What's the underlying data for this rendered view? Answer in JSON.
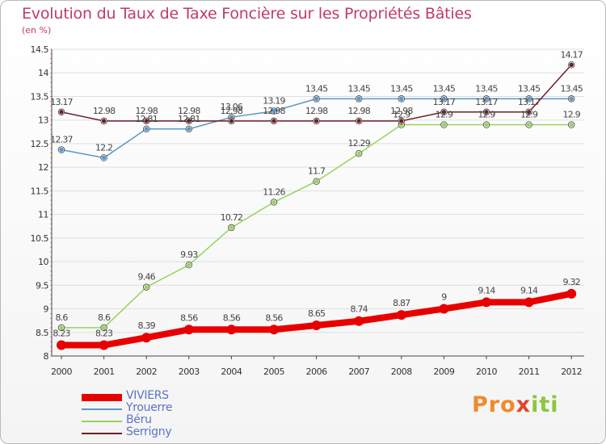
{
  "title": "Evolution du Taux de Taxe Foncière sur les Propriétés Bâties",
  "unit_label": "(en %)",
  "logo": {
    "parts": [
      "Pro",
      "x",
      "iti"
    ]
  },
  "chart_data": {
    "type": "line",
    "title": "Evolution du Taux de Taxe Foncière sur les Propriétés Bâties",
    "ylabel": "(en %)",
    "x": [
      "2000",
      "2001",
      "2002",
      "2003",
      "2004",
      "2005",
      "2006",
      "2007",
      "2008",
      "2009",
      "2010",
      "2011",
      "2012"
    ],
    "ylim": [
      8,
      14.5
    ],
    "yticks": [
      "8",
      "8.5",
      "9",
      "9.5",
      "10",
      "10.5",
      "11",
      "11.5",
      "12",
      "12.5",
      "13",
      "13.5",
      "14",
      "14.5"
    ],
    "grid": "horizontal",
    "legend_position": "bottom-left",
    "series": [
      {
        "name": "VIVIERS",
        "color": "#e80000",
        "width": 8,
        "marker": 6,
        "values": [
          8.23,
          8.23,
          8.39,
          8.56,
          8.56,
          8.56,
          8.65,
          8.74,
          8.87,
          9,
          9.14,
          9.14,
          9.32
        ],
        "labels": [
          "8.23",
          "8.23",
          "8.39",
          "8.56",
          "8.56",
          "8.56",
          "8.65",
          "8.74",
          "8.87",
          "9",
          "9.14",
          "9.14",
          "9.32"
        ]
      },
      {
        "name": "Yrouerre",
        "color": "#5a96c8",
        "width": 1.5,
        "marker": 3,
        "values": [
          12.37,
          12.2,
          12.81,
          12.81,
          13.06,
          13.19,
          13.45,
          13.45,
          13.45,
          13.45,
          13.45,
          13.45,
          13.45
        ],
        "labels": [
          "12.37",
          "12.2",
          "12.81",
          "12.81",
          "13.06",
          "13.19",
          "13.45",
          "13.45",
          "13.45",
          "13.45",
          "13.45",
          "13.45",
          "13.45"
        ]
      },
      {
        "name": "Béru",
        "color": "#98d35a",
        "width": 1.5,
        "marker": 3,
        "values": [
          8.6,
          8.6,
          9.46,
          9.93,
          10.72,
          11.26,
          11.7,
          12.29,
          12.9,
          12.9,
          12.9,
          12.9,
          12.9
        ],
        "labels": [
          "8.6",
          "8.6",
          "9.46",
          "9.93",
          "10.72",
          "11.26",
          "11.7",
          "12.29",
          "12.9",
          "12.9",
          "12.9",
          "12.9",
          "12.9"
        ]
      },
      {
        "name": "Serrigny",
        "color": "#6e1e28",
        "width": 1.5,
        "marker": 3,
        "values": [
          13.17,
          12.98,
          12.98,
          12.98,
          12.98,
          12.98,
          12.98,
          12.98,
          12.98,
          13.17,
          13.17,
          13.17,
          14.17
        ],
        "labels": [
          "13.17",
          "12.98",
          "12.98",
          "12.98",
          "12.98",
          "12.98",
          "12.98",
          "12.98",
          "12.98",
          "13.17",
          "13.17",
          "13.17",
          "14.17"
        ]
      }
    ]
  }
}
